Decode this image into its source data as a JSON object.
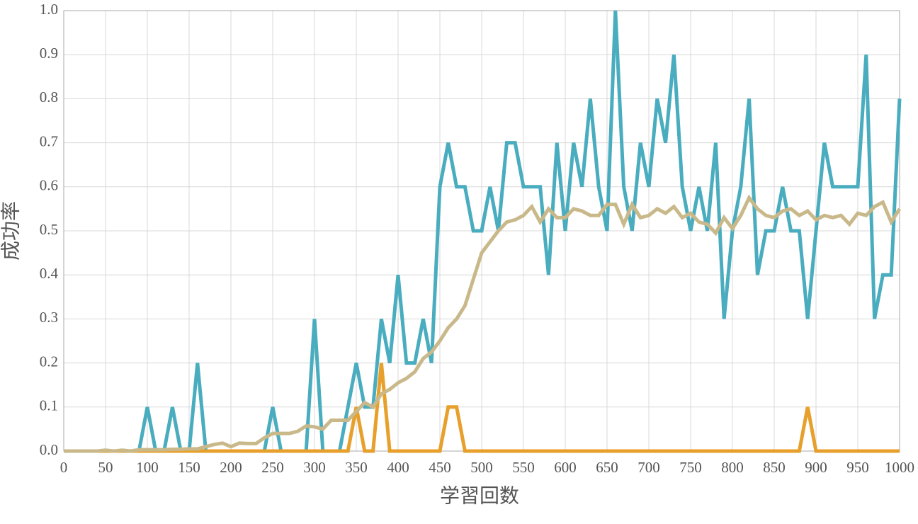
{
  "chart_data": {
    "type": "line",
    "x_label": "学習回数",
    "y_label": "成功率",
    "x": [
      0,
      10,
      20,
      30,
      40,
      50,
      60,
      70,
      80,
      90,
      100,
      110,
      120,
      130,
      140,
      150,
      160,
      170,
      180,
      190,
      200,
      210,
      220,
      230,
      240,
      250,
      260,
      270,
      280,
      290,
      300,
      310,
      320,
      330,
      340,
      350,
      360,
      370,
      380,
      390,
      400,
      410,
      420,
      430,
      440,
      450,
      460,
      470,
      480,
      490,
      500,
      510,
      520,
      530,
      540,
      550,
      560,
      570,
      580,
      590,
      600,
      610,
      620,
      630,
      640,
      650,
      660,
      670,
      680,
      690,
      700,
      710,
      720,
      730,
      740,
      750,
      760,
      770,
      780,
      790,
      800,
      810,
      820,
      830,
      840,
      850,
      860,
      870,
      880,
      890,
      900,
      910,
      920,
      930,
      940,
      950,
      960,
      970,
      980,
      990,
      1000
    ],
    "series": [
      {
        "color": "#4aadbf",
        "values": [
          0,
          0,
          0,
          0,
          0,
          0,
          0,
          0,
          0,
          0,
          0.1,
          0,
          0,
          0.1,
          0,
          0,
          0.2,
          0,
          0,
          0,
          0,
          0,
          0,
          0,
          0,
          0.1,
          0,
          0,
          0,
          0,
          0.3,
          0,
          0,
          0,
          0.1,
          0.2,
          0.1,
          0.1,
          0.3,
          0.2,
          0.4,
          0.2,
          0.2,
          0.3,
          0.2,
          0.6,
          0.7,
          0.6,
          0.6,
          0.5,
          0.5,
          0.6,
          0.5,
          0.7,
          0.7,
          0.6,
          0.6,
          0.6,
          0.4,
          0.7,
          0.5,
          0.7,
          0.6,
          0.8,
          0.6,
          0.5,
          1.0,
          0.6,
          0.5,
          0.7,
          0.6,
          0.8,
          0.7,
          0.9,
          0.6,
          0.5,
          0.6,
          0.5,
          0.7,
          0.3,
          0.5,
          0.6,
          0.8,
          0.4,
          0.5,
          0.5,
          0.6,
          0.5,
          0.5,
          0.3,
          0.5,
          0.7,
          0.6,
          0.6,
          0.6,
          0.6,
          0.9,
          0.3,
          0.4,
          0.4,
          0.8
        ]
      },
      {
        "color": "#e8a02c",
        "values": [
          0,
          0,
          0,
          0,
          0,
          0,
          0,
          0,
          0,
          0,
          0,
          0,
          0,
          0,
          0,
          0,
          0,
          0,
          0,
          0,
          0,
          0,
          0,
          0,
          0,
          0,
          0,
          0,
          0,
          0,
          0,
          0,
          0,
          0,
          0,
          0.1,
          0,
          0,
          0.2,
          0,
          0,
          0,
          0,
          0,
          0,
          0,
          0.1,
          0.1,
          0,
          0,
          0,
          0,
          0,
          0,
          0,
          0,
          0,
          0,
          0,
          0,
          0,
          0,
          0,
          0,
          0,
          0,
          0,
          0,
          0,
          0,
          0,
          0,
          0,
          0,
          0,
          0,
          0,
          0,
          0,
          0,
          0,
          0,
          0,
          0,
          0,
          0,
          0,
          0,
          0,
          0.1,
          0,
          0,
          0,
          0,
          0,
          0,
          0,
          0,
          0,
          0,
          0
        ]
      },
      {
        "color": "#c9b98a",
        "values": [
          0,
          0,
          0,
          0,
          0,
          0.002,
          0,
          0.002,
          0,
          0.003,
          0.003,
          0.003,
          0.003,
          0.004,
          0.004,
          0.005,
          0.005,
          0.01,
          0.015,
          0.018,
          0.01,
          0.018,
          0.017,
          0.017,
          0.03,
          0.04,
          0.04,
          0.04,
          0.045,
          0.057,
          0.055,
          0.05,
          0.07,
          0.07,
          0.07,
          0.09,
          0.11,
          0.1,
          0.13,
          0.14,
          0.155,
          0.165,
          0.18,
          0.21,
          0.225,
          0.25,
          0.28,
          0.3,
          0.33,
          0.39,
          0.45,
          0.475,
          0.5,
          0.52,
          0.525,
          0.535,
          0.555,
          0.52,
          0.55,
          0.53,
          0.53,
          0.55,
          0.545,
          0.535,
          0.535,
          0.56,
          0.56,
          0.515,
          0.56,
          0.53,
          0.535,
          0.55,
          0.54,
          0.555,
          0.53,
          0.54,
          0.52,
          0.515,
          0.495,
          0.53,
          0.505,
          0.535,
          0.575,
          0.55,
          0.535,
          0.53,
          0.545,
          0.55,
          0.535,
          0.545,
          0.525,
          0.535,
          0.53,
          0.535,
          0.515,
          0.54,
          0.535,
          0.555,
          0.565,
          0.52,
          0.55
        ]
      }
    ],
    "xlim": [
      0,
      1000
    ],
    "xticks": [
      0,
      50,
      100,
      150,
      200,
      250,
      300,
      350,
      400,
      450,
      500,
      550,
      600,
      650,
      700,
      750,
      800,
      850,
      900,
      950,
      1000
    ],
    "ylim": [
      0,
      1
    ],
    "yticks": [
      {
        "value": 0,
        "label": "0.0"
      },
      0.1,
      0.2,
      0.3,
      0.4,
      0.5,
      0.6,
      0.7,
      0.8,
      0.9,
      {
        "value": 1,
        "label": "1.0"
      }
    ],
    "grid": true
  }
}
